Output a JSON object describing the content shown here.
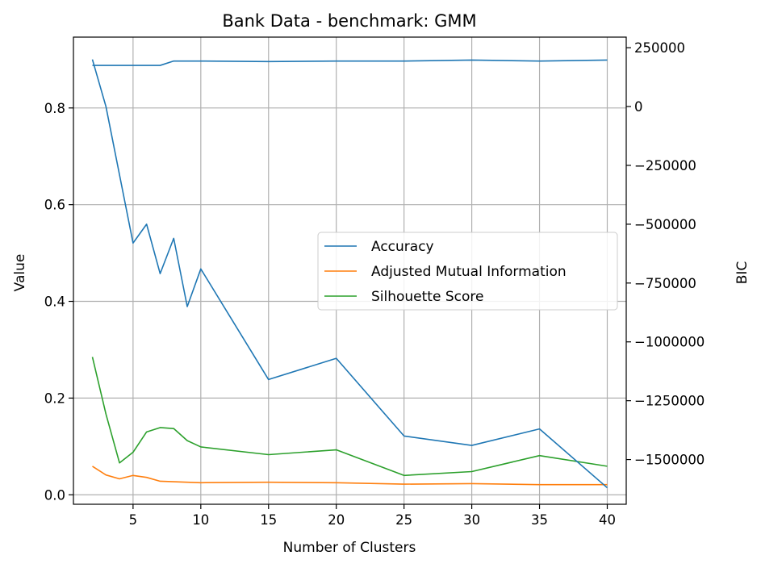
{
  "chart_data": {
    "type": "line",
    "title": "Bank Data - benchmark: GMM",
    "xlabel": "Number of Clusters",
    "ylabel": "Value",
    "y2label": "BIC",
    "x": [
      2,
      3,
      4,
      5,
      6,
      7,
      8,
      9,
      10,
      15,
      20,
      25,
      30,
      35,
      40
    ],
    "xlim": [
      0.6,
      41.4
    ],
    "ylim": [
      -0.0196,
      0.9465
    ],
    "y2lim": [
      -1690000,
      295000
    ],
    "xticks": [
      5,
      10,
      15,
      20,
      25,
      30,
      35,
      40
    ],
    "xtick_labels": [
      "5",
      "10",
      "15",
      "20",
      "25",
      "30",
      "35",
      "40"
    ],
    "yticks": [
      0.0,
      0.2,
      0.4,
      0.6,
      0.8
    ],
    "ytick_labels": [
      "0.0",
      "0.2",
      "0.4",
      "0.6",
      "0.8"
    ],
    "y2ticks": [
      250000,
      0,
      -250000,
      -500000,
      -750000,
      -1000000,
      -1250000,
      -1500000
    ],
    "y2tick_labels": [
      "250000",
      "0",
      "−250000",
      "−500000",
      "−750000",
      "−1000000",
      "−1250000",
      "−1500000"
    ],
    "grid": true,
    "legend_position": "center-right",
    "series": [
      {
        "name": "Accuracy",
        "axis": "left",
        "color": "#1f77b4",
        "values": [
          0.888,
          0.888,
          0.888,
          0.888,
          0.888,
          0.888,
          0.897,
          0.897,
          0.897,
          0.896,
          0.897,
          0.897,
          0.899,
          0.897,
          0.899
        ]
      },
      {
        "name": "Adjusted Mutual Information",
        "axis": "left",
        "color": "#ff7f0e",
        "values": [
          0.059,
          0.041,
          0.033,
          0.04,
          0.036,
          0.028,
          0.027,
          0.026,
          0.025,
          0.026,
          0.025,
          0.022,
          0.023,
          0.021,
          0.021
        ]
      },
      {
        "name": "Silhouette Score",
        "axis": "left",
        "color": "#2ca02c",
        "values": [
          0.285,
          0.167,
          0.066,
          0.088,
          0.13,
          0.139,
          0.137,
          0.112,
          0.099,
          0.083,
          0.093,
          0.04,
          0.048,
          0.081,
          0.059
        ]
      },
      {
        "name": "BIC",
        "axis": "right",
        "color": "#1f77b4",
        "values": [
          200000,
          0,
          -290000,
          -580000,
          -500000,
          -710000,
          -560000,
          -850000,
          -690000,
          -1160000,
          -1070000,
          -1400000,
          -1440000,
          -1370000,
          -1620000
        ]
      }
    ]
  }
}
